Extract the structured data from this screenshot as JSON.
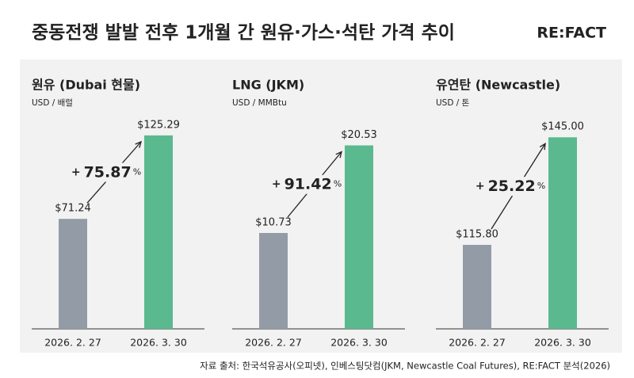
{
  "header": {
    "title": "중동전쟁 발발 전후 1개월 간 원유·가스·석탄 가격 추이",
    "logo": "RE:FACT"
  },
  "chart_data": [
    {
      "type": "bar",
      "title": "원유 (Dubai 현물)",
      "unit": "USD / 배럴",
      "categories": [
        "2026. 2. 27",
        "2026. 3. 30"
      ],
      "values": [
        71.24,
        125.29
      ],
      "value_labels": [
        "$71.24",
        "$125.29"
      ],
      "colors": [
        "#939ca6",
        "#5bb98f"
      ],
      "ylim": [
        0,
        136
      ],
      "change": {
        "prefix": "+",
        "value": 75.87,
        "suffix": "%"
      }
    },
    {
      "type": "bar",
      "title": "LNG (JKM)",
      "unit": "USD / MMBtu",
      "categories": [
        "2026. 2. 27",
        "2026. 3. 30"
      ],
      "values": [
        10.73,
        20.53
      ],
      "value_labels": [
        "$10.73",
        "$20.53"
      ],
      "colors": [
        "#939ca6",
        "#5bb98f"
      ],
      "ylim": [
        0,
        23.5
      ],
      "change": {
        "prefix": "+",
        "value": 91.42,
        "suffix": "%"
      }
    },
    {
      "type": "bar",
      "title": "유연탄 (Newcastle)",
      "unit": "USD / 톤",
      "categories": [
        "2026. 2. 27",
        "2026. 3. 30"
      ],
      "values": [
        115.8,
        145.0
      ],
      "value_labels": [
        "$115.80",
        "$145.00"
      ],
      "colors": [
        "#939ca6",
        "#5bb98f"
      ],
      "ylim": [
        93,
        150
      ],
      "change": {
        "prefix": "+",
        "value": 25.22,
        "suffix": "%"
      }
    }
  ],
  "footer": {
    "source": "자료 출처: 한국석유공사(오피넷), 인베스팅닷컴(JKM, Newcastle Coal Futures), RE:FACT 분석(2026)"
  }
}
